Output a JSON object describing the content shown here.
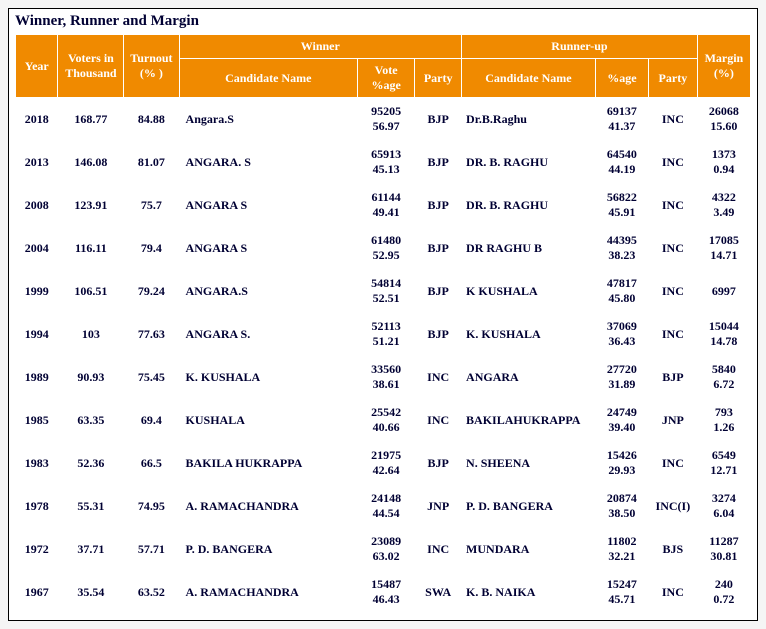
{
  "title": "Winner, Runner and Margin",
  "headers": {
    "year": "Year",
    "voters": "Voters in Thousand",
    "turnout": "Turnout (% )",
    "winner_group": "Winner",
    "runner_group": "Runner-up",
    "cand_name": "Candidate Name",
    "vote_pct": "Vote %age",
    "party": "Party",
    "pct": "%age",
    "margin": "Margin (%)"
  },
  "colors": {
    "header_bg": "#f08a00",
    "header_fg": "#ffffff",
    "text": "#000033"
  },
  "rows": [
    {
      "year": "2018",
      "voters": "168.77",
      "turnout": "84.88",
      "w_name": "Angara.S",
      "w_votes": "95205",
      "w_pct": "56.97",
      "w_party": "BJP",
      "r_name": "Dr.B.Raghu",
      "r_votes": "69137",
      "r_pct": "41.37",
      "r_party": "INC",
      "m_votes": "26068",
      "m_pct": "15.60"
    },
    {
      "year": "2013",
      "voters": "146.08",
      "turnout": "81.07",
      "w_name": "ANGARA. S",
      "w_votes": "65913",
      "w_pct": "45.13",
      "w_party": "BJP",
      "r_name": "DR. B. RAGHU",
      "r_votes": "64540",
      "r_pct": "44.19",
      "r_party": "INC",
      "m_votes": "1373",
      "m_pct": "0.94"
    },
    {
      "year": "2008",
      "voters": "123.91",
      "turnout": "75.7",
      "w_name": "ANGARA S",
      "w_votes": "61144",
      "w_pct": "49.41",
      "w_party": "BJP",
      "r_name": "DR. B. RAGHU",
      "r_votes": "56822",
      "r_pct": "45.91",
      "r_party": "INC",
      "m_votes": "4322",
      "m_pct": "3.49"
    },
    {
      "year": "2004",
      "voters": "116.11",
      "turnout": "79.4",
      "w_name": "ANGARA S",
      "w_votes": "61480",
      "w_pct": "52.95",
      "w_party": "BJP",
      "r_name": "DR RAGHU B",
      "r_votes": "44395",
      "r_pct": "38.23",
      "r_party": "INC",
      "m_votes": "17085",
      "m_pct": "14.71"
    },
    {
      "year": "1999",
      "voters": "106.51",
      "turnout": "79.24",
      "w_name": "ANGARA.S",
      "w_votes": "54814",
      "w_pct": "52.51",
      "w_party": "BJP",
      "r_name": "K KUSHALA",
      "r_votes": "47817",
      "r_pct": "45.80",
      "r_party": "INC",
      "m_votes": "6997",
      "m_pct": ""
    },
    {
      "year": "1994",
      "voters": "103",
      "turnout": "77.63",
      "w_name": "ANGARA S.",
      "w_votes": "52113",
      "w_pct": "51.21",
      "w_party": "BJP",
      "r_name": "K. KUSHALA",
      "r_votes": "37069",
      "r_pct": "36.43",
      "r_party": "INC",
      "m_votes": "15044",
      "m_pct": "14.78"
    },
    {
      "year": "1989",
      "voters": "90.93",
      "turnout": "75.45",
      "w_name": "K. KUSHALA",
      "w_votes": "33560",
      "w_pct": "38.61",
      "w_party": "INC",
      "r_name": "ANGARA",
      "r_votes": "27720",
      "r_pct": "31.89",
      "r_party": "BJP",
      "m_votes": "5840",
      "m_pct": "6.72"
    },
    {
      "year": "1985",
      "voters": "63.35",
      "turnout": "69.4",
      "w_name": "KUSHALA",
      "w_votes": "25542",
      "w_pct": "40.66",
      "w_party": "INC",
      "r_name": "BAKILAHUKRAPPA",
      "r_votes": "24749",
      "r_pct": "39.40",
      "r_party": "JNP",
      "m_votes": "793",
      "m_pct": "1.26"
    },
    {
      "year": "1983",
      "voters": "52.36",
      "turnout": "66.5",
      "w_name": "BAKILA HUKRAPPA",
      "w_votes": "21975",
      "w_pct": "42.64",
      "w_party": "BJP",
      "r_name": "N. SHEENA",
      "r_votes": "15426",
      "r_pct": "29.93",
      "r_party": "INC",
      "m_votes": "6549",
      "m_pct": "12.71"
    },
    {
      "year": "1978",
      "voters": "55.31",
      "turnout": "74.95",
      "w_name": "A. RAMACHANDRA",
      "w_votes": "24148",
      "w_pct": "44.54",
      "w_party": "JNP",
      "r_name": "P. D. BANGERA",
      "r_votes": "20874",
      "r_pct": "38.50",
      "r_party": "INC(I)",
      "m_votes": "3274",
      "m_pct": "6.04"
    },
    {
      "year": "1972",
      "voters": "37.71",
      "turnout": "57.71",
      "w_name": "P. D. BANGERA",
      "w_votes": "23089",
      "w_pct": "63.02",
      "w_party": "INC",
      "r_name": "MUNDARA",
      "r_votes": "11802",
      "r_pct": "32.21",
      "r_party": "BJS",
      "m_votes": "11287",
      "m_pct": "30.81"
    },
    {
      "year": "1967",
      "voters": "35.54",
      "turnout": "63.52",
      "w_name": "A. RAMACHANDRA",
      "w_votes": "15487",
      "w_pct": "46.43",
      "w_party": "SWA",
      "r_name": "K. B. NAIKA",
      "r_votes": "15247",
      "r_pct": "45.71",
      "r_party": "INC",
      "m_votes": "240",
      "m_pct": "0.72"
    }
  ]
}
